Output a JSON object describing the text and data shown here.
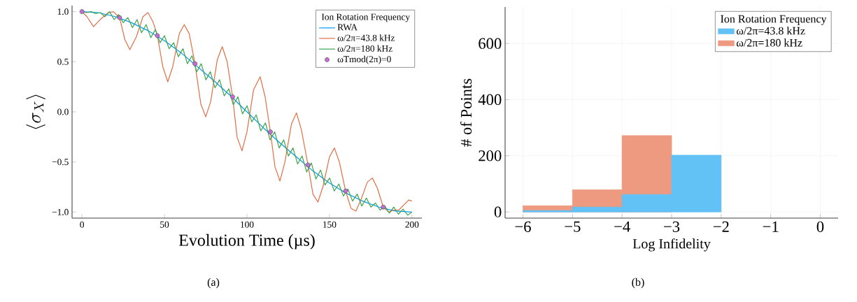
{
  "chart_data": [
    {
      "type": "line",
      "xlabel": "Evolution Time (µs)",
      "ylabel": "\\langle \\sigma_X \\rangle",
      "legend_title": "Ion Rotation Frequency",
      "legend": "top right",
      "xlim": [
        -6,
        206
      ],
      "ylim": [
        -1.06,
        1.06
      ],
      "xticks": [
        0,
        50,
        100,
        150,
        200
      ],
      "yticks": [
        {
          "value": -1,
          "label": "−1.0"
        },
        {
          "value": -0.5,
          "label": "−0.5"
        },
        {
          "value": 0,
          "label": "0.0"
        },
        {
          "value": 0.5,
          "label": "0.5"
        },
        {
          "value": 1,
          "label": "1.0"
        }
      ],
      "annotations": [
        "(a)"
      ],
      "series": [
        {
          "name": "RWA",
          "type": "line",
          "color": "#009af9",
          "x": [
            0,
            10,
            20,
            30,
            40,
            50,
            60,
            70,
            80,
            90,
            100,
            110,
            120,
            130,
            140,
            150,
            160,
            170,
            180,
            190,
            200
          ],
          "values": [
            1.0,
            0.99,
            0.95,
            0.89,
            0.81,
            0.71,
            0.59,
            0.45,
            0.31,
            0.16,
            0.0,
            -0.16,
            -0.31,
            -0.45,
            -0.59,
            -0.71,
            -0.81,
            -0.89,
            -0.95,
            -0.99,
            -1.0
          ]
        },
        {
          "name": "ω/2π=43.8 kHz",
          "type": "line",
          "color": "#e26f46",
          "x": [
            0,
            3,
            7,
            11,
            16,
            19,
            22.8,
            26,
            29,
            33,
            37,
            40,
            43,
            45.7,
            49,
            52,
            55,
            59,
            62,
            65,
            68.5,
            72,
            75,
            78,
            82,
            85,
            88,
            91.3,
            94,
            97,
            100,
            104,
            108,
            111,
            114.2,
            117,
            120,
            123,
            127,
            130,
            133,
            137,
            140,
            143,
            146,
            150,
            153,
            156,
            159.8,
            163,
            166,
            169,
            173,
            176,
            179,
            182.6,
            186,
            189,
            192,
            195,
            198,
            200
          ],
          "values": [
            1.0,
            0.95,
            0.85,
            0.92,
            0.99,
            1.0,
            0.94,
            0.72,
            0.62,
            0.75,
            0.95,
            0.99,
            0.9,
            0.76,
            0.45,
            0.3,
            0.45,
            0.78,
            0.87,
            0.78,
            0.48,
            0.08,
            -0.05,
            0.1,
            0.52,
            0.65,
            0.5,
            0.15,
            -0.25,
            -0.39,
            -0.2,
            0.22,
            0.35,
            0.15,
            -0.2,
            -0.55,
            -0.69,
            -0.5,
            -0.12,
            -0.01,
            -0.18,
            -0.53,
            -0.82,
            -0.9,
            -0.75,
            -0.45,
            -0.36,
            -0.5,
            -0.79,
            -0.96,
            -0.99,
            -0.88,
            -0.7,
            -0.66,
            -0.76,
            -0.95,
            -1.0,
            -0.98,
            -0.98,
            -0.93,
            -0.88,
            -0.89
          ]
        },
        {
          "name": "ω/2π=180 kHz",
          "type": "line",
          "color": "#3da44d",
          "x": [
            0,
            2.8,
            5.6,
            8.3,
            11.1,
            13.9,
            16.7,
            19.5,
            22.2,
            25.0,
            27.8,
            30.6,
            33.4,
            36.1,
            38.9,
            41.7,
            44.5,
            47.3,
            50.0,
            52.8,
            55.6,
            58.4,
            61.2,
            63.9,
            66.7,
            69.5,
            72.3,
            75.1,
            77.8,
            80.6,
            83.4,
            86.2,
            89.0,
            91.7,
            94.5,
            97.3,
            100.1,
            102.9,
            105.6,
            108.4,
            111.2,
            114.0,
            116.8,
            119.5,
            122.3,
            125.1,
            127.9,
            130.7,
            133.4,
            136.2,
            139.0,
            141.8,
            144.6,
            147.3,
            150.1,
            152.9,
            155.7,
            158.5,
            161.2,
            164.0,
            166.8,
            169.6,
            172.4,
            175.1,
            177.9,
            180.7,
            183.5,
            186.3,
            189.0,
            191.8,
            194.6,
            197.4,
            200
          ],
          "values": [
            1.0,
            0.99,
            1.0,
            0.98,
            0.99,
            0.95,
            1.0,
            0.92,
            0.97,
            0.89,
            0.94,
            0.84,
            0.92,
            0.79,
            0.87,
            0.74,
            0.82,
            0.69,
            0.76,
            0.63,
            0.69,
            0.55,
            0.63,
            0.48,
            0.56,
            0.4,
            0.48,
            0.32,
            0.4,
            0.24,
            0.32,
            0.16,
            0.23,
            0.07,
            0.15,
            -0.02,
            0.06,
            -0.1,
            -0.03,
            -0.19,
            -0.11,
            -0.28,
            -0.2,
            -0.36,
            -0.28,
            -0.44,
            -0.36,
            -0.52,
            -0.44,
            -0.6,
            -0.51,
            -0.67,
            -0.58,
            -0.73,
            -0.66,
            -0.79,
            -0.72,
            -0.84,
            -0.77,
            -0.89,
            -0.82,
            -0.94,
            -0.86,
            -0.95,
            -0.91,
            -0.98,
            -0.94,
            -1.01,
            -0.95,
            -1.02,
            -0.97,
            -1.03,
            -1.0
          ]
        },
        {
          "name": "ωTmod(2π)=0",
          "type": "scatter",
          "marker": "circle",
          "color": "#c271d2",
          "x": [
            0,
            22.8,
            45.7,
            68.5,
            91.3,
            114.2,
            137.0,
            159.8,
            182.6
          ],
          "values": [
            1.0,
            0.94,
            0.76,
            0.48,
            0.15,
            -0.2,
            -0.53,
            -0.79,
            -0.95
          ]
        }
      ]
    },
    {
      "type": "histogram",
      "xlabel": "Log Infidelity",
      "ylabel": "# of Points",
      "legend_title": "Ion Rotation Frequency",
      "legend": "top right",
      "grid": true,
      "xlim": [
        -6.36,
        0.36
      ],
      "ylim": [
        -22,
        730
      ],
      "xticks": [
        {
          "value": -6,
          "label": "−6"
        },
        {
          "value": -5,
          "label": "−5"
        },
        {
          "value": -4,
          "label": "−4"
        },
        {
          "value": -3,
          "label": "−3"
        },
        {
          "value": -2,
          "label": "−2"
        },
        {
          "value": -1,
          "label": "−1"
        },
        0
      ],
      "yticks": [
        0,
        200,
        400,
        600
      ],
      "annotations": [
        "(b)"
      ],
      "bins": [
        -6,
        -5,
        -4,
        -3,
        -2,
        -1,
        0
      ],
      "series": [
        {
          "name": "ω/2π=43.8 kHz",
          "color": "#62c1f5",
          "values": [
            5,
            17,
            62,
            202,
            null,
            0
          ]
        },
        {
          "name": "ω/2π=180 kHz",
          "color": "#ee9a80",
          "values": [
            22,
            79,
            272,
            null,
            0,
            0
          ]
        }
      ]
    }
  ]
}
